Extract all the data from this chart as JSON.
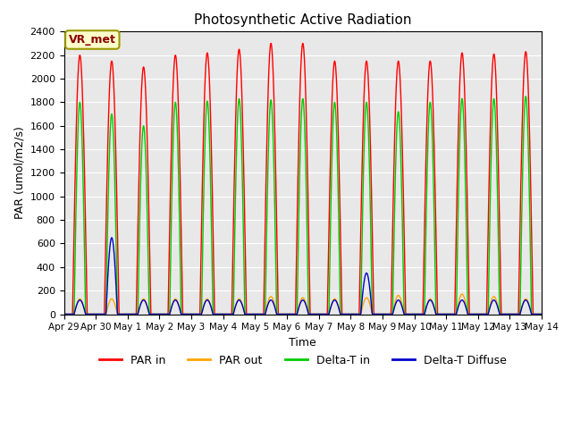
{
  "title": "Photosynthetic Active Radiation",
  "xlabel": "Time",
  "ylabel": "PAR (umol/m2/s)",
  "ylim": [
    0,
    2400
  ],
  "yticks": [
    0,
    200,
    400,
    600,
    800,
    1000,
    1200,
    1400,
    1600,
    1800,
    2000,
    2200,
    2400
  ],
  "label_box": "VR_met",
  "legend_entries": [
    "PAR in",
    "PAR out",
    "Delta-T in",
    "Delta-T Diffuse"
  ],
  "colors": {
    "PAR in": "#ff0000",
    "PAR out": "#ffa500",
    "Delta-T in": "#00cc00",
    "Delta-T Diffuse": "#0000cc"
  },
  "background_color": "#e8e8e8",
  "n_days": 16,
  "day_labels": [
    "Apr 29",
    "Apr 30",
    "May 1",
    "May 2",
    "May 3",
    "May 4",
    "May 5",
    "May 6",
    "May 7",
    "May 8",
    "May 9",
    "May 10",
    "May 11",
    "May 12",
    "May 13",
    "May 14"
  ],
  "par_in_peaks": [
    2200,
    2150,
    2100,
    2200,
    2220,
    2250,
    2300,
    2300,
    2150,
    2150,
    2150,
    2150,
    2220,
    2210,
    2230,
    0
  ],
  "par_out_peaks": [
    130,
    130,
    130,
    130,
    130,
    130,
    150,
    140,
    130,
    140,
    160,
    130,
    170,
    150,
    130,
    0
  ],
  "delta_t_in_peaks": [
    1800,
    1700,
    1600,
    1800,
    1810,
    1830,
    1820,
    1830,
    1800,
    1800,
    1720,
    1800,
    1830,
    1830,
    1850,
    0
  ],
  "delta_t_diff_peaks": [
    120,
    650,
    120,
    120,
    120,
    120,
    120,
    120,
    120,
    350,
    120,
    120,
    120,
    120,
    120,
    0
  ]
}
